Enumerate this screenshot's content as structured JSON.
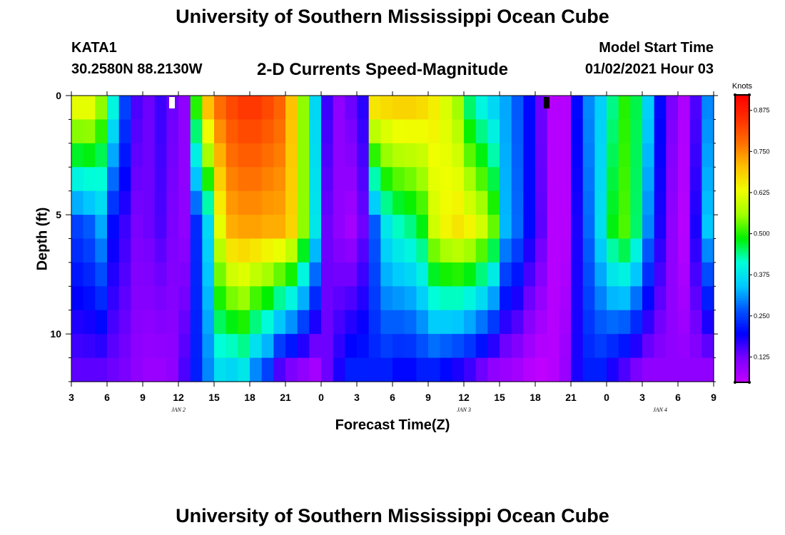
{
  "header": {
    "title": "University of Southern Mississippi Ocean Cube",
    "station": "KATA1",
    "coords": "30.2580N 88.2130W",
    "subtitle": "2-D Currents Speed-Magnitude",
    "model_start_label": "Model Start Time",
    "model_start_value": "01/02/2021 Hour 03"
  },
  "footer": {
    "title": "University of Southern Mississippi Ocean Cube"
  },
  "chart_data": {
    "type": "heatmap",
    "title": "2-D Currents Speed-Magnitude",
    "xlabel": "Forecast Time(Z)",
    "ylabel": "Depth (ft)",
    "x_range_hours_from_start": [
      0,
      54
    ],
    "x_ticks": [
      "3",
      "6",
      "9",
      "12",
      "15",
      "18",
      "21",
      "0",
      "3",
      "6",
      "9",
      "12",
      "15",
      "18",
      "21",
      "0",
      "3",
      "6",
      "9"
    ],
    "date_labels": [
      {
        "label": "JAN 2",
        "hour": 9
      },
      {
        "label": "JAN 3",
        "hour": 33
      },
      {
        "label": "JAN 4",
        "hour": 49.5
      }
    ],
    "y_range_ft": [
      0,
      12
    ],
    "y_ticks": [
      "0",
      "5",
      "10"
    ],
    "colorbar": {
      "label": "Knots",
      "range": [
        0.05,
        0.92
      ],
      "ticks": [
        "0.875",
        "0.750",
        "0.625",
        "0.500",
        "0.375",
        "0.250",
        "0.125"
      ],
      "colors": [
        "#c000ff",
        "#7a00ff",
        "#0000ff",
        "#0055ff",
        "#00c8ff",
        "#00ffd8",
        "#00f000",
        "#a0ff00",
        "#f0ff00",
        "#ffc000",
        "#ff7000",
        "#ff3000",
        "#ff0000"
      ]
    },
    "depth_levels": 12,
    "time_columns": 54,
    "speed_knots_at_depth_levels": [
      {
        "depth_level": 1,
        "values": [
          0.62,
          0.62,
          0.55,
          0.4,
          0.25,
          0.15,
          0.13,
          0.16,
          0.13,
          0.1,
          0.5,
          0.7,
          0.78,
          0.82,
          0.84,
          0.84,
          0.82,
          0.79,
          0.7,
          0.55,
          0.36,
          0.16,
          0.1,
          0.13,
          0.17,
          0.66,
          0.67,
          0.68,
          0.68,
          0.67,
          0.65,
          0.61,
          0.56,
          0.45,
          0.4,
          0.36,
          0.32,
          0.27,
          0.2,
          0.13,
          0.06,
          0.06,
          0.2,
          0.3,
          0.35,
          0.44,
          0.5,
          0.46,
          0.35,
          0.2,
          0.12,
          0.07,
          0.15,
          0.3
        ]
      },
      {
        "depth_level": 6,
        "values": [
          0.25,
          0.27,
          0.32,
          0.2,
          0.16,
          0.12,
          0.13,
          0.15,
          0.12,
          0.1,
          0.23,
          0.36,
          0.62,
          0.72,
          0.73,
          0.73,
          0.72,
          0.72,
          0.68,
          0.55,
          0.38,
          0.13,
          0.1,
          0.08,
          0.13,
          0.27,
          0.38,
          0.42,
          0.44,
          0.48,
          0.6,
          0.64,
          0.66,
          0.64,
          0.6,
          0.53,
          0.33,
          0.28,
          0.2,
          0.14,
          0.06,
          0.06,
          0.18,
          0.28,
          0.37,
          0.48,
          0.52,
          0.45,
          0.3,
          0.18,
          0.1,
          0.06,
          0.18,
          0.34
        ]
      },
      {
        "depth_level": 12,
        "values": [
          0.14,
          0.14,
          0.14,
          0.13,
          0.12,
          0.1,
          0.09,
          0.09,
          0.1,
          0.15,
          0.22,
          0.3,
          0.37,
          0.36,
          0.38,
          0.3,
          0.25,
          0.15,
          0.12,
          0.1,
          0.08,
          0.13,
          0.18,
          0.22,
          0.22,
          0.22,
          0.22,
          0.2,
          0.2,
          0.22,
          0.22,
          0.2,
          0.18,
          0.16,
          0.13,
          0.1,
          0.09,
          0.08,
          0.06,
          0.05,
          0.06,
          0.09,
          0.18,
          0.22,
          0.22,
          0.18,
          0.15,
          0.12,
          0.1,
          0.1,
          0.1,
          0.1,
          0.1,
          0.1
        ]
      }
    ]
  }
}
